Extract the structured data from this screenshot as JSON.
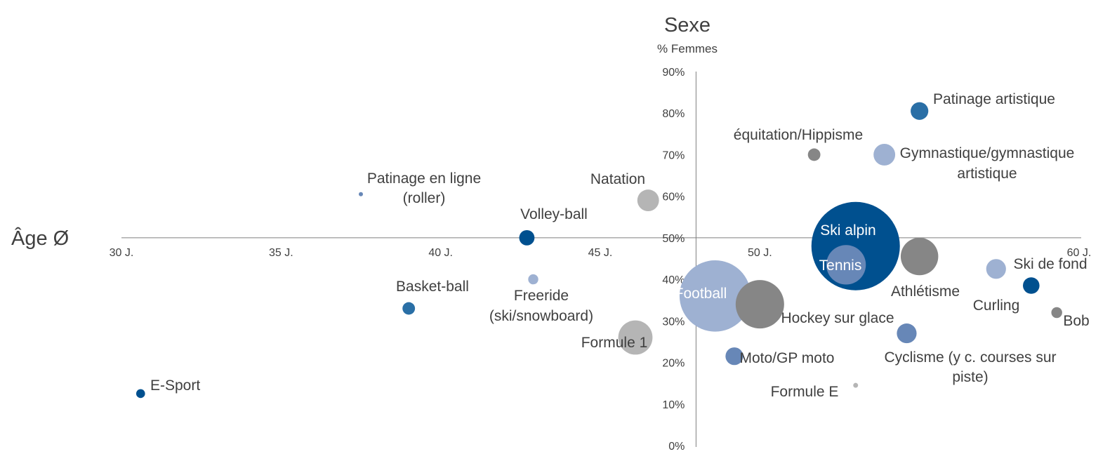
{
  "chart_data": {
    "type": "scatter",
    "title": "Sexe",
    "ylabel": "% Femmes",
    "xlabel": "Âge Ø",
    "xlim": [
      30,
      60
    ],
    "ylim": [
      0,
      90
    ],
    "x_ticks": [
      "30 J.",
      "35 J.",
      "40 J.",
      "45 J.",
      "50 J.",
      "55 J.",
      "60 J."
    ],
    "y_ticks": [
      "0%",
      "10%",
      "20%",
      "30%",
      "40%",
      "50%",
      "60%",
      "70%",
      "80%",
      "90%"
    ],
    "x_axis_crosses_y": 50,
    "y_axis_crosses_x": 48,
    "grid": false,
    "legend": "none",
    "colors": {
      "dark_blue": "#00508f",
      "mid_blue": "#2a6fa6",
      "steel_blue": "#6787b7",
      "light_blue": "#9eb1d2",
      "dark_gray": "#868686",
      "light_gray": "#b5b5b5",
      "axis": "#7f7f7f",
      "text": "#404040"
    },
    "series": [
      {
        "name": "E-Sport",
        "x": 30.6,
        "y": 12.5,
        "size": 1,
        "color": "dark_blue"
      },
      {
        "name": "Basket-ball",
        "x": 39.0,
        "y": 33.0,
        "size": 2,
        "color": "mid_blue"
      },
      {
        "name": "Patinage en ligne (roller)",
        "x": 37.5,
        "y": 60.5,
        "size": 0.2,
        "color": "steel_blue"
      },
      {
        "name": "Volley-ball",
        "x": 42.7,
        "y": 50.0,
        "size": 3,
        "color": "dark_blue"
      },
      {
        "name": "Freeride (ski/snowboard)",
        "x": 42.9,
        "y": 40.0,
        "size": 1.3,
        "color": "light_blue"
      },
      {
        "name": "Natation",
        "x": 46.5,
        "y": 59.0,
        "size": 6,
        "color": "light_gray"
      },
      {
        "name": "Formule 1",
        "x": 46.1,
        "y": 26.0,
        "size": 15,
        "color": "light_gray"
      },
      {
        "name": "Football",
        "x": 48.6,
        "y": 36.0,
        "size": 65,
        "color": "light_blue"
      },
      {
        "name": "Hockey sur glace",
        "x": 50.0,
        "y": 34.0,
        "size": 30,
        "color": "dark_gray"
      },
      {
        "name": "Moto/GP moto",
        "x": 49.2,
        "y": 21.5,
        "size": 4,
        "color": "steel_blue"
      },
      {
        "name": "Formule E",
        "x": 53.0,
        "y": 14.5,
        "size": 0.3,
        "color": "light_gray"
      },
      {
        "name": "équitation/Hippisme",
        "x": 51.7,
        "y": 70.0,
        "size": 2,
        "color": "dark_gray"
      },
      {
        "name": "Ski alpin",
        "x": 53.0,
        "y": 48.0,
        "size": 100,
        "color": "dark_blue"
      },
      {
        "name": "Tennis",
        "x": 52.7,
        "y": 43.5,
        "size": 20,
        "color": "steel_blue"
      },
      {
        "name": "Athlétisme",
        "x": 55.0,
        "y": 45.5,
        "size": 18,
        "color": "dark_gray"
      },
      {
        "name": "Gymnastique/gymnastique artistique",
        "x": 53.9,
        "y": 70.0,
        "size": 6,
        "color": "light_blue"
      },
      {
        "name": "Patinage artistique",
        "x": 55.0,
        "y": 80.5,
        "size": 4,
        "color": "mid_blue"
      },
      {
        "name": "Cyclisme (y c. courses sur piste)",
        "x": 54.6,
        "y": 27.0,
        "size": 5,
        "color": "steel_blue"
      },
      {
        "name": "Curling",
        "x": 57.4,
        "y": 42.5,
        "size": 5,
        "color": "light_blue"
      },
      {
        "name": "Ski de fond",
        "x": 58.5,
        "y": 38.5,
        "size": 3.5,
        "color": "dark_blue"
      },
      {
        "name": "Bob",
        "x": 59.3,
        "y": 32.0,
        "size": 1.5,
        "color": "dark_gray"
      }
    ]
  },
  "labels": {
    "esport": "E-Sport",
    "basket": "Basket-ball",
    "roller_1": "Patinage en ligne",
    "roller_2": "(roller)",
    "volley": "Volley-ball",
    "freeride_1": "Freeride",
    "freeride_2": "(ski/snowboard)",
    "natation": "Natation",
    "formule1": "Formule 1",
    "football": "Football",
    "hockey": "Hockey sur glace",
    "moto": "Moto/GP moto",
    "formuleE": "Formule E",
    "equitation": "équitation/Hippisme",
    "skialpin": "Ski alpin",
    "tennis": "Tennis",
    "athletisme": "Athlétisme",
    "gym_1": "Gymnastique/gymnastique",
    "gym_2": "artistique",
    "patinage": "Patinage artistique",
    "cyclisme_1": "Cyclisme (y c. courses sur",
    "cyclisme_2": "piste)",
    "curling": "Curling",
    "skifond": "Ski de fond",
    "bob": "Bob"
  }
}
